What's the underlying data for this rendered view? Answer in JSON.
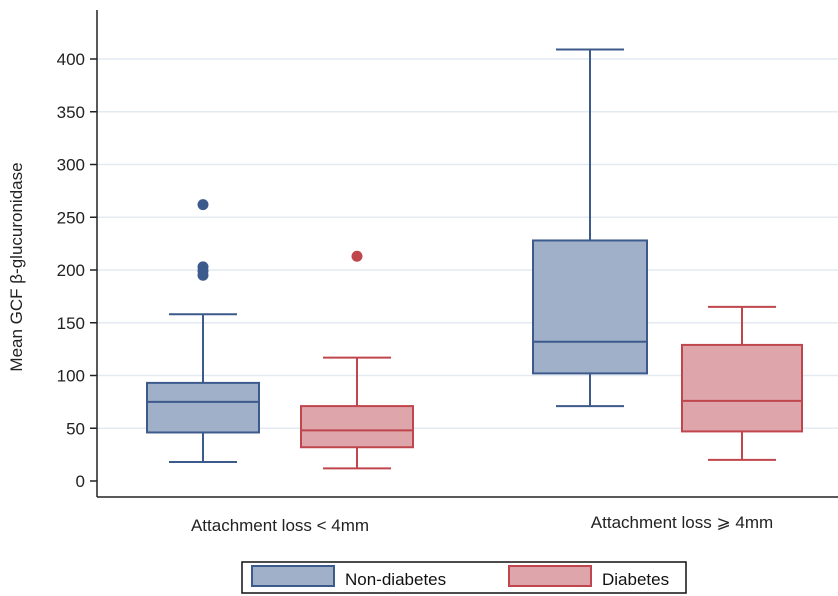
{
  "chart_data": {
    "type": "box",
    "ylabel": "Mean GCF β-glucuronidase",
    "xlabel": "",
    "yticks": [
      0,
      50,
      100,
      150,
      200,
      250,
      300,
      350,
      400
    ],
    "ylim": [
      -5,
      450
    ],
    "grid": true,
    "categories": [
      "Attachment loss < 4mm",
      "Attachment loss ⩾ 4mm"
    ],
    "series": [
      {
        "name": "Non-diabetes",
        "color": "#9fb0c8",
        "edge": "#3d5a8c",
        "boxes": [
          {
            "min": 18,
            "q1": 46,
            "median": 75,
            "q3": 93,
            "max": 158,
            "outliers": [
              262,
              203,
              199,
              195
            ]
          },
          {
            "min": 71,
            "q1": 102,
            "median": 132,
            "q3": 228,
            "max": 409,
            "outliers": []
          }
        ]
      },
      {
        "name": "Diabetes",
        "color": "#dea5ab",
        "edge": "#c0464e",
        "boxes": [
          {
            "min": 12,
            "q1": 32,
            "median": 48,
            "q3": 71,
            "max": 117,
            "outliers": [
              213
            ]
          },
          {
            "min": 20,
            "q1": 47,
            "median": 76,
            "q3": 129,
            "max": 165,
            "outliers": []
          }
        ]
      }
    ],
    "legend": "bottom-center"
  }
}
